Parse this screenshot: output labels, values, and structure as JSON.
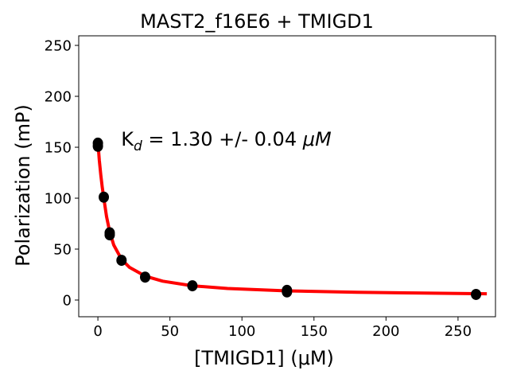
{
  "chart_data": {
    "type": "scatter",
    "title": "MAST2_f16E6 + TMIGD1",
    "xlabel": "[TMIGD1] (μM)",
    "ylabel": "Polarization (mP)",
    "xlim": [
      -13.3,
      276
    ],
    "ylim": [
      -16.4,
      259.4
    ],
    "xticks": [
      0,
      50,
      100,
      150,
      200,
      250
    ],
    "yticks": [
      0,
      50,
      100,
      150,
      200,
      250
    ],
    "grid": false,
    "annotation": {
      "kd_label": "K",
      "kd_sub": "d",
      "kd_value": " = 1.30 +/- 0.04 ",
      "kd_unit": "μM",
      "x": -5,
      "y": 158
    },
    "series": [
      {
        "name": "data",
        "color": "#000000",
        "x": [
          0,
          0,
          4.1,
          8.2,
          8.2,
          16.4,
          32.8,
          65.6,
          131.25,
          131.25,
          262.5
        ],
        "y": [
          154,
          151,
          101,
          66,
          64,
          39,
          22.5,
          14,
          9.5,
          8,
          5.5
        ]
      },
      {
        "name": "fit",
        "color": "#ff0000",
        "x": [
          0,
          1,
          2,
          3,
          4.1,
          6,
          8.2,
          11,
          16.4,
          22,
          32.8,
          45,
          65.6,
          90,
          131.25,
          180,
          220,
          262.5,
          270
        ],
        "y": [
          155,
          137,
          123,
          111,
          100,
          82,
          67,
          54,
          40,
          32,
          23.5,
          18.5,
          14,
          11.3,
          9,
          7.6,
          6.9,
          6.3,
          6.2
        ]
      }
    ]
  }
}
